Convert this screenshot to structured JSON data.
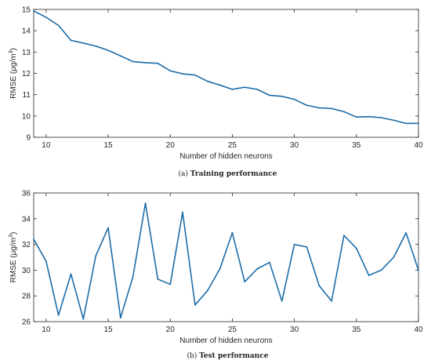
{
  "colors": {
    "line": "#1b6ca8",
    "axis": "#262626",
    "background": "#ffffff"
  },
  "chart_data": [
    {
      "type": "line",
      "xlabel": "Number of hidden neurons",
      "ylabel": "RMSE  (μg/m³)",
      "ylabel_parts": {
        "prefix": "RMSE  (μg/m",
        "sup": "3",
        "suffix": ")"
      },
      "caption_label": "(a)",
      "caption_text": "Training performance",
      "xlim": [
        9,
        40
      ],
      "ylim": [
        9,
        15
      ],
      "xticks": [
        10,
        15,
        20,
        25,
        30,
        35,
        40
      ],
      "yticks": [
        9,
        10,
        11,
        12,
        13,
        14,
        15
      ],
      "grid": false,
      "legend": "none",
      "x": [
        9,
        10,
        11,
        12,
        13,
        14,
        15,
        16,
        17,
        18,
        19,
        20,
        21,
        22,
        23,
        24,
        25,
        26,
        27,
        28,
        29,
        30,
        31,
        32,
        33,
        34,
        35,
        36,
        37,
        38,
        39,
        40
      ],
      "y": [
        14.93,
        14.63,
        14.25,
        13.55,
        13.42,
        13.28,
        13.08,
        12.82,
        12.55,
        12.5,
        12.47,
        12.12,
        11.98,
        11.92,
        11.63,
        11.45,
        11.25,
        11.35,
        11.25,
        10.97,
        10.92,
        10.78,
        10.5,
        10.38,
        10.35,
        10.2,
        9.95,
        9.97,
        9.92,
        9.8,
        9.65,
        9.65
      ]
    },
    {
      "type": "line",
      "xlabel": "Number of hidden neurons",
      "ylabel": "RMSE  (μg/m³)",
      "ylabel_parts": {
        "prefix": "RMSE  (μg/m",
        "sup": "3",
        "suffix": ")"
      },
      "caption_label": "(b)",
      "caption_text": "Test performance",
      "xlim": [
        9,
        40
      ],
      "ylim": [
        26,
        36
      ],
      "xticks": [
        10,
        15,
        20,
        25,
        30,
        35,
        40
      ],
      "yticks": [
        26,
        28,
        30,
        32,
        34,
        36
      ],
      "grid": false,
      "legend": "none",
      "x": [
        9,
        10,
        11,
        12,
        13,
        14,
        15,
        16,
        17,
        18,
        19,
        20,
        21,
        22,
        23,
        24,
        25,
        26,
        27,
        28,
        29,
        30,
        31,
        32,
        33,
        34,
        35,
        36,
        37,
        38,
        39,
        40
      ],
      "y": [
        32.4,
        30.7,
        26.5,
        29.7,
        26.2,
        31.1,
        33.3,
        26.3,
        29.5,
        35.2,
        29.3,
        28.9,
        34.5,
        27.3,
        28.4,
        30.1,
        32.9,
        29.1,
        30.1,
        30.6,
        27.6,
        32.0,
        31.8,
        28.8,
        27.6,
        32.7,
        31.7,
        29.6,
        30.0,
        31.0,
        32.9,
        30.0
      ]
    }
  ]
}
